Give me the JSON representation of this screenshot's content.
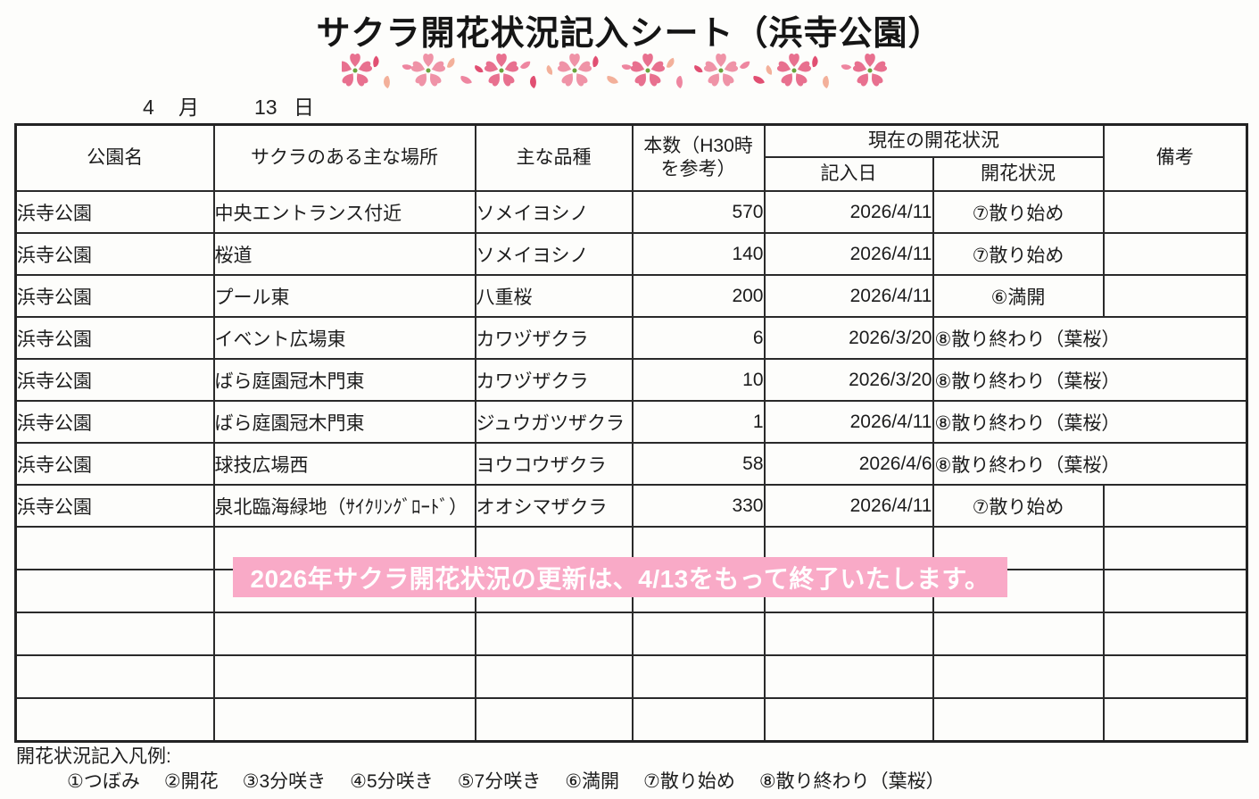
{
  "document": {
    "title": "サクラ開花状況記入シート（浜寺公園）",
    "date_line": {
      "month_value": "4",
      "month_unit": "月",
      "day_value": "13",
      "day_unit": "日"
    }
  },
  "table": {
    "headers": {
      "park_name": "公園名",
      "main_location": "サクラのある主な場所",
      "main_variety": "主な品種",
      "tree_count_line1": "本数（H30時",
      "tree_count_line2": "を参考）",
      "current_bloom_status": "現在の開花状況",
      "entry_date": "記入日",
      "bloom_status": "開花状況",
      "remarks": "備考"
    },
    "rows": [
      {
        "park": "浜寺公園",
        "location": "中央エントランス付近",
        "variety": "ソメイヨシノ",
        "count": "570",
        "entry_date": "2026/4/11",
        "status": "⑦散り始め",
        "remarks": "",
        "status_spans_remarks": false
      },
      {
        "park": "浜寺公園",
        "location": "桜道",
        "variety": "ソメイヨシノ",
        "count": "140",
        "entry_date": "2026/4/11",
        "status": "⑦散り始め",
        "remarks": "",
        "status_spans_remarks": false
      },
      {
        "park": "浜寺公園",
        "location": "プール東",
        "variety": "八重桜",
        "count": "200",
        "entry_date": "2026/4/11",
        "status": "⑥満開",
        "remarks": "",
        "status_spans_remarks": false
      },
      {
        "park": "浜寺公園",
        "location": "イベント広場東",
        "variety": "カワヅザクラ",
        "count": "6",
        "entry_date": "2026/3/20",
        "status": "⑧散り終わり（葉桜）",
        "remarks": "",
        "status_spans_remarks": true
      },
      {
        "park": "浜寺公園",
        "location": "ばら庭園冠木門東",
        "variety": "カワヅザクラ",
        "count": "10",
        "entry_date": "2026/3/20",
        "status": "⑧散り終わり（葉桜）",
        "remarks": "",
        "status_spans_remarks": true
      },
      {
        "park": "浜寺公園",
        "location": "ばら庭園冠木門東",
        "variety": "ジュウガツザクラ",
        "count": "1",
        "entry_date": "2026/4/11",
        "status": "⑧散り終わり（葉桜）",
        "remarks": "",
        "status_spans_remarks": true
      },
      {
        "park": "浜寺公園",
        "location": "球技広場西",
        "variety": "ヨウコウザクラ",
        "count": "58",
        "entry_date": "2026/4/6",
        "status": "⑧散り終わり（葉桜）",
        "remarks": "",
        "status_spans_remarks": true
      },
      {
        "park": "浜寺公園",
        "location": "泉北臨海緑地（ｻｲｸﾘﾝｸﾞﾛｰﾄﾞ）",
        "variety": "オオシマザクラ",
        "count": "330",
        "entry_date": "2026/4/11",
        "status": "⑦散り始め",
        "remarks": "",
        "status_spans_remarks": false
      }
    ],
    "empty_rows": 5
  },
  "notice": {
    "text": "2026年サクラ開花状況の更新は、4/13をもって終了いたします。",
    "background_color": "#f9aac7",
    "text_color": "#ffffff"
  },
  "legend": {
    "label": "開花状況記入凡例:",
    "items": [
      "①つぼみ",
      "②開花",
      "③3分咲き",
      "④5分咲き",
      "⑤7分咲き",
      "⑥満開",
      "⑦散り始め",
      "⑧散り終わり（葉桜）"
    ]
  },
  "decorations": {
    "sakura_border_icon": "sakura-flower-petal-border",
    "flower_colors": [
      "#e8708f",
      "#ef93a7"
    ],
    "petal_colors": [
      "#e14f72",
      "#f3b09a",
      "#ee86a0"
    ],
    "flower_center_color": "#6aa33c"
  }
}
